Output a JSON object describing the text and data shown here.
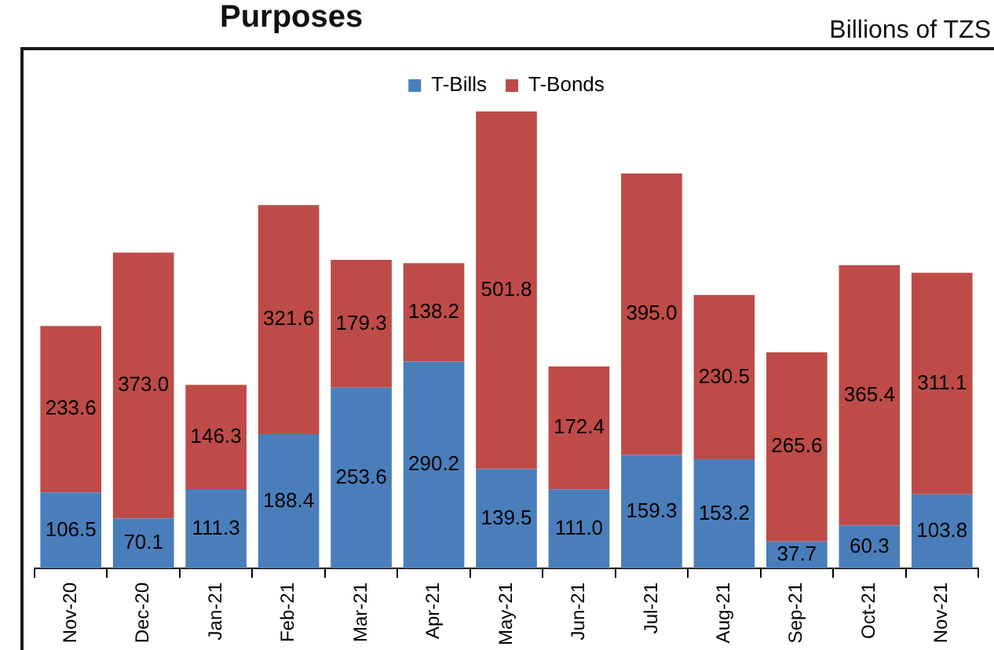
{
  "chart_data": {
    "type": "bar",
    "title": "Purposes",
    "subtitle": "Billions of TZS",
    "categories": [
      "Nov-20",
      "Dec-20",
      "Jan-21",
      "Feb-21",
      "Mar-21",
      "Apr-21",
      "May-21",
      "Jun-21",
      "Jul-21",
      "Aug-21",
      "Sep-21",
      "Oct-21",
      "Nov-21"
    ],
    "stacked": true,
    "legend": "top",
    "tick_labels": "x",
    "series": [
      {
        "name": "T-Bills",
        "color": "#4a7ebb",
        "values": [
          106.5,
          70.1,
          111.3,
          188.4,
          253.6,
          290.2,
          139.5,
          111.0,
          159.3,
          153.2,
          37.7,
          60.3,
          103.8
        ],
        "value_labels": [
          "106.5",
          "70.1",
          "111.3",
          "188.4",
          "253.6",
          "290.2",
          "139.5",
          "111.0",
          "159.3",
          "153.2",
          "37.7",
          "60.3",
          "103.8"
        ]
      },
      {
        "name": "T-Bonds",
        "color": "#be4b48",
        "values": [
          233.6,
          373.0,
          146.3,
          321.6,
          179.3,
          138.2,
          501.8,
          172.4,
          395.0,
          230.5,
          265.6,
          365.4,
          311.1
        ],
        "value_labels": [
          "233.6",
          "373.0",
          "146.3",
          "321.6",
          "179.3",
          "138.2",
          "501.8",
          "172.4",
          "395.0",
          "230.5",
          "265.6",
          "365.4",
          "311.1"
        ]
      }
    ]
  }
}
